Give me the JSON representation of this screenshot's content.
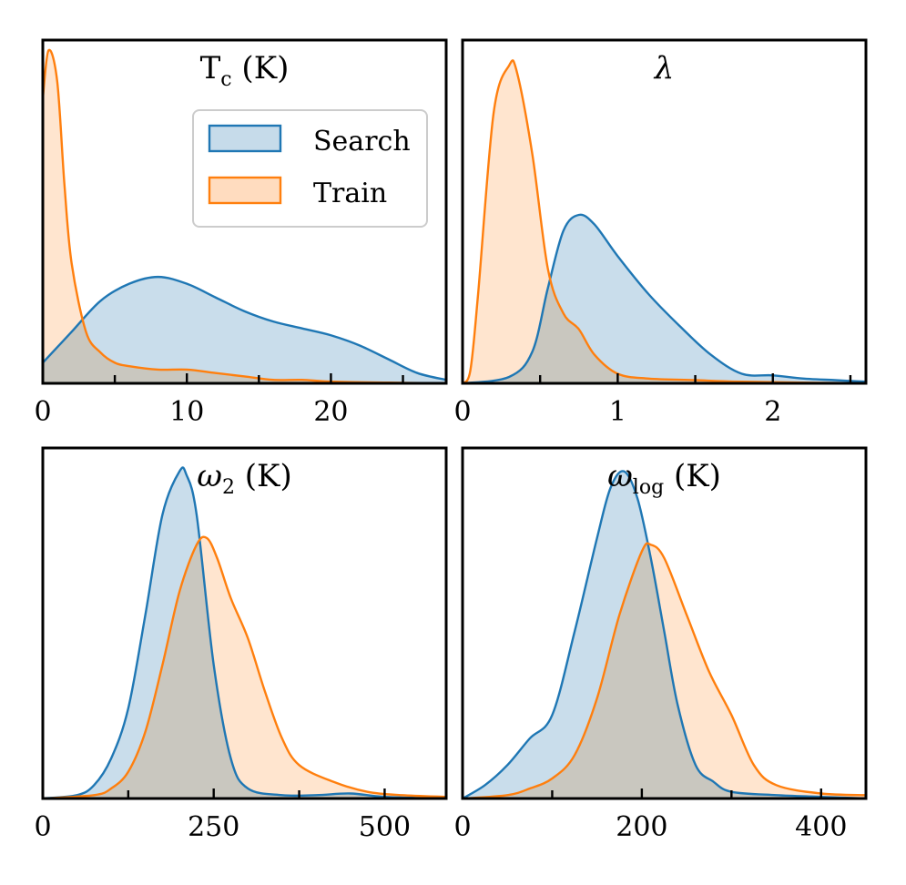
{
  "chart_data": [
    {
      "type": "area",
      "title": "T_c (K)",
      "title_html": {
        "main": "T",
        "sub": "c",
        "rest": " (K)"
      },
      "xlim": [
        0,
        28
      ],
      "xticks": [
        0,
        10,
        20
      ],
      "xminor": [
        5,
        15,
        25
      ],
      "series": [
        {
          "name": "Search",
          "x": [
            0,
            2,
            4,
            6,
            8,
            10,
            12,
            14,
            16,
            18,
            20,
            22,
            24,
            26,
            28
          ],
          "y": [
            0.06,
            0.15,
            0.24,
            0.29,
            0.31,
            0.29,
            0.25,
            0.21,
            0.18,
            0.16,
            0.14,
            0.11,
            0.07,
            0.03,
            0.01
          ]
        },
        {
          "name": "Train",
          "x": [
            0,
            0.4,
            1,
            1.5,
            2,
            3,
            4,
            5,
            6,
            8,
            10,
            12,
            14,
            16,
            18,
            20,
            24,
            28
          ],
          "y": [
            0.83,
            0.97,
            0.88,
            0.58,
            0.35,
            0.15,
            0.09,
            0.06,
            0.05,
            0.04,
            0.04,
            0.03,
            0.02,
            0.01,
            0.01,
            0.005,
            0.002,
            0
          ]
        }
      ],
      "ylim": [
        0,
        1.0
      ]
    },
    {
      "type": "area",
      "title": "λ",
      "xlim": [
        0,
        2.6
      ],
      "xticks": [
        0,
        1,
        2
      ],
      "xminor": [
        0.5,
        1.5,
        2.5
      ],
      "series": [
        {
          "name": "Search",
          "x": [
            0,
            0.3,
            0.45,
            0.55,
            0.65,
            0.75,
            0.85,
            1.0,
            1.2,
            1.4,
            1.6,
            1.8,
            2.0,
            2.2,
            2.4,
            2.6
          ],
          "y": [
            0,
            0.02,
            0.1,
            0.3,
            0.48,
            0.53,
            0.5,
            0.4,
            0.28,
            0.18,
            0.09,
            0.03,
            0.025,
            0.015,
            0.01,
            0.005
          ]
        },
        {
          "name": "Train",
          "x": [
            0,
            0.05,
            0.1,
            0.2,
            0.3,
            0.35,
            0.45,
            0.55,
            0.65,
            0.75,
            0.85,
            1.0,
            1.2,
            1.5,
            1.8,
            2.6
          ],
          "y": [
            0,
            0.04,
            0.28,
            0.85,
            1.0,
            0.98,
            0.72,
            0.36,
            0.22,
            0.17,
            0.09,
            0.03,
            0.015,
            0.01,
            0.005,
            0
          ]
        }
      ],
      "ylim": [
        0,
        1.08
      ]
    },
    {
      "type": "area",
      "title": "ω_2 (K)",
      "title_html": {
        "main": "ω",
        "sub": "2",
        "rest": " (K)"
      },
      "xlim": [
        0,
        590
      ],
      "xticks": [
        0,
        250,
        500
      ],
      "xminor": [
        125,
        375
      ],
      "series": [
        {
          "name": "Search",
          "x": [
            0,
            50,
            75,
            100,
            125,
            150,
            175,
            200,
            210,
            225,
            250,
            275,
            300,
            350,
            400,
            450,
            500,
            590
          ],
          "y": [
            0,
            0.01,
            0.04,
            0.12,
            0.27,
            0.55,
            0.85,
            0.98,
            0.97,
            0.85,
            0.4,
            0.12,
            0.03,
            0.01,
            0.01,
            0.015,
            0.005,
            0
          ]
        },
        {
          "name": "Train",
          "x": [
            0,
            75,
            100,
            125,
            150,
            175,
            200,
            225,
            240,
            255,
            275,
            300,
            325,
            350,
            375,
            425,
            475,
            525,
            590
          ],
          "y": [
            0,
            0.01,
            0.03,
            0.08,
            0.2,
            0.4,
            0.62,
            0.76,
            0.78,
            0.72,
            0.6,
            0.48,
            0.32,
            0.18,
            0.1,
            0.05,
            0.02,
            0.01,
            0.005
          ]
        }
      ],
      "ylim": [
        0,
        1.05
      ]
    },
    {
      "type": "area",
      "title": "ω_log (K)",
      "title_html": {
        "main": "ω",
        "sub": "log",
        "rest": " (K)"
      },
      "xlim": [
        0,
        450
      ],
      "xticks": [
        0,
        200,
        400
      ],
      "xminor": [
        100,
        300
      ],
      "series": [
        {
          "name": "Search",
          "x": [
            0,
            25,
            50,
            75,
            100,
            125,
            150,
            165,
            180,
            195,
            210,
            225,
            240,
            260,
            280,
            300,
            350,
            400,
            450
          ],
          "y": [
            0,
            0.04,
            0.1,
            0.18,
            0.25,
            0.5,
            0.78,
            0.93,
            0.98,
            0.9,
            0.72,
            0.5,
            0.28,
            0.1,
            0.05,
            0.02,
            0.01,
            0.005,
            0
          ]
        },
        {
          "name": "Train",
          "x": [
            0,
            50,
            75,
            100,
            125,
            150,
            175,
            200,
            210,
            225,
            250,
            275,
            300,
            325,
            350,
            400,
            450
          ],
          "y": [
            0,
            0.01,
            0.03,
            0.06,
            0.13,
            0.3,
            0.55,
            0.74,
            0.76,
            0.72,
            0.55,
            0.38,
            0.25,
            0.1,
            0.04,
            0.015,
            0.01
          ]
        }
      ],
      "ylim": [
        0,
        1.05
      ]
    }
  ],
  "legend": {
    "items": [
      "Search",
      "Train"
    ],
    "placement": "top-right of first panel"
  },
  "colors": {
    "Search": "#1f77b4",
    "Train": "#ff7f0e",
    "Search_fill": "#c6dbea",
    "Train_fill": "#ffdcbf",
    "overlap_fill": "#c5c3bd"
  }
}
